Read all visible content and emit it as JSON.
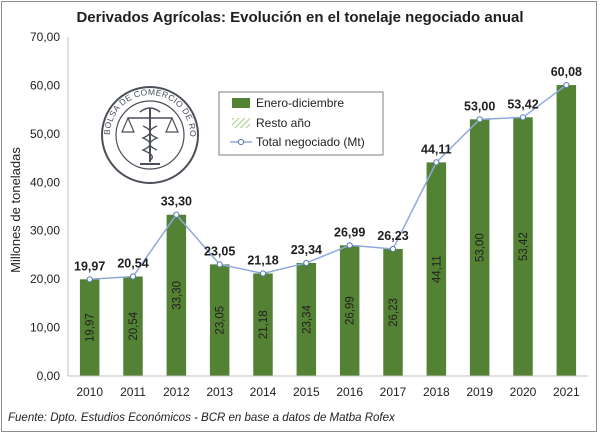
{
  "chart_data": {
    "type": "bar",
    "title": "Derivados Agrícolas: Evolución en el tonelaje negociado anual",
    "ylabel": "Millones de toneladas",
    "xlabel": "",
    "ylim": [
      0,
      70
    ],
    "yticks": [
      "0,00",
      "10,00",
      "20,00",
      "30,00",
      "40,00",
      "50,00",
      "60,00",
      "70,00"
    ],
    "ytick_values": [
      0,
      10,
      20,
      30,
      40,
      50,
      60,
      70
    ],
    "categories": [
      "2010",
      "2011",
      "2012",
      "2013",
      "2014",
      "2015",
      "2016",
      "2017",
      "2018",
      "2019",
      "2020",
      "2021"
    ],
    "series": [
      {
        "name": "Enero-diciembre",
        "kind": "bar",
        "color": "#548235",
        "values": [
          19.97,
          20.54,
          33.3,
          23.05,
          21.18,
          23.34,
          26.99,
          26.23,
          44.11,
          53.0,
          53.42,
          null
        ],
        "labels": [
          "19,97",
          "20,54",
          "33,30",
          "23,05",
          "21,18",
          "23,34",
          "26,99",
          "26,23",
          "44,11",
          "53,00",
          "53,42",
          ""
        ]
      },
      {
        "name": "Resto año",
        "kind": "bar-hatched",
        "color": "#a9d18e",
        "values": [
          0,
          0,
          0,
          0,
          0,
          0,
          0,
          0,
          0,
          0,
          0,
          60.08
        ]
      },
      {
        "name": "Total negociado (Mt)",
        "kind": "line",
        "color": "#8faadc",
        "values": [
          19.97,
          20.54,
          33.3,
          23.05,
          21.18,
          23.34,
          26.99,
          26.23,
          44.11,
          53.0,
          53.42,
          60.08
        ],
        "labels": [
          "19,97",
          "20,54",
          "33,30",
          "23,05",
          "21,18",
          "23,34",
          "26,99",
          "26,23",
          "44,11",
          "53,00",
          "53,42",
          "60,08"
        ]
      }
    ],
    "legend_position": "top-center",
    "grid": false
  },
  "logo": {
    "text": "BOLSA DE COMERCIO DE ROSARIO"
  },
  "source": "Fuente: Dpto. Estudios Económicos - BCR en base a datos de Matba Rofex"
}
